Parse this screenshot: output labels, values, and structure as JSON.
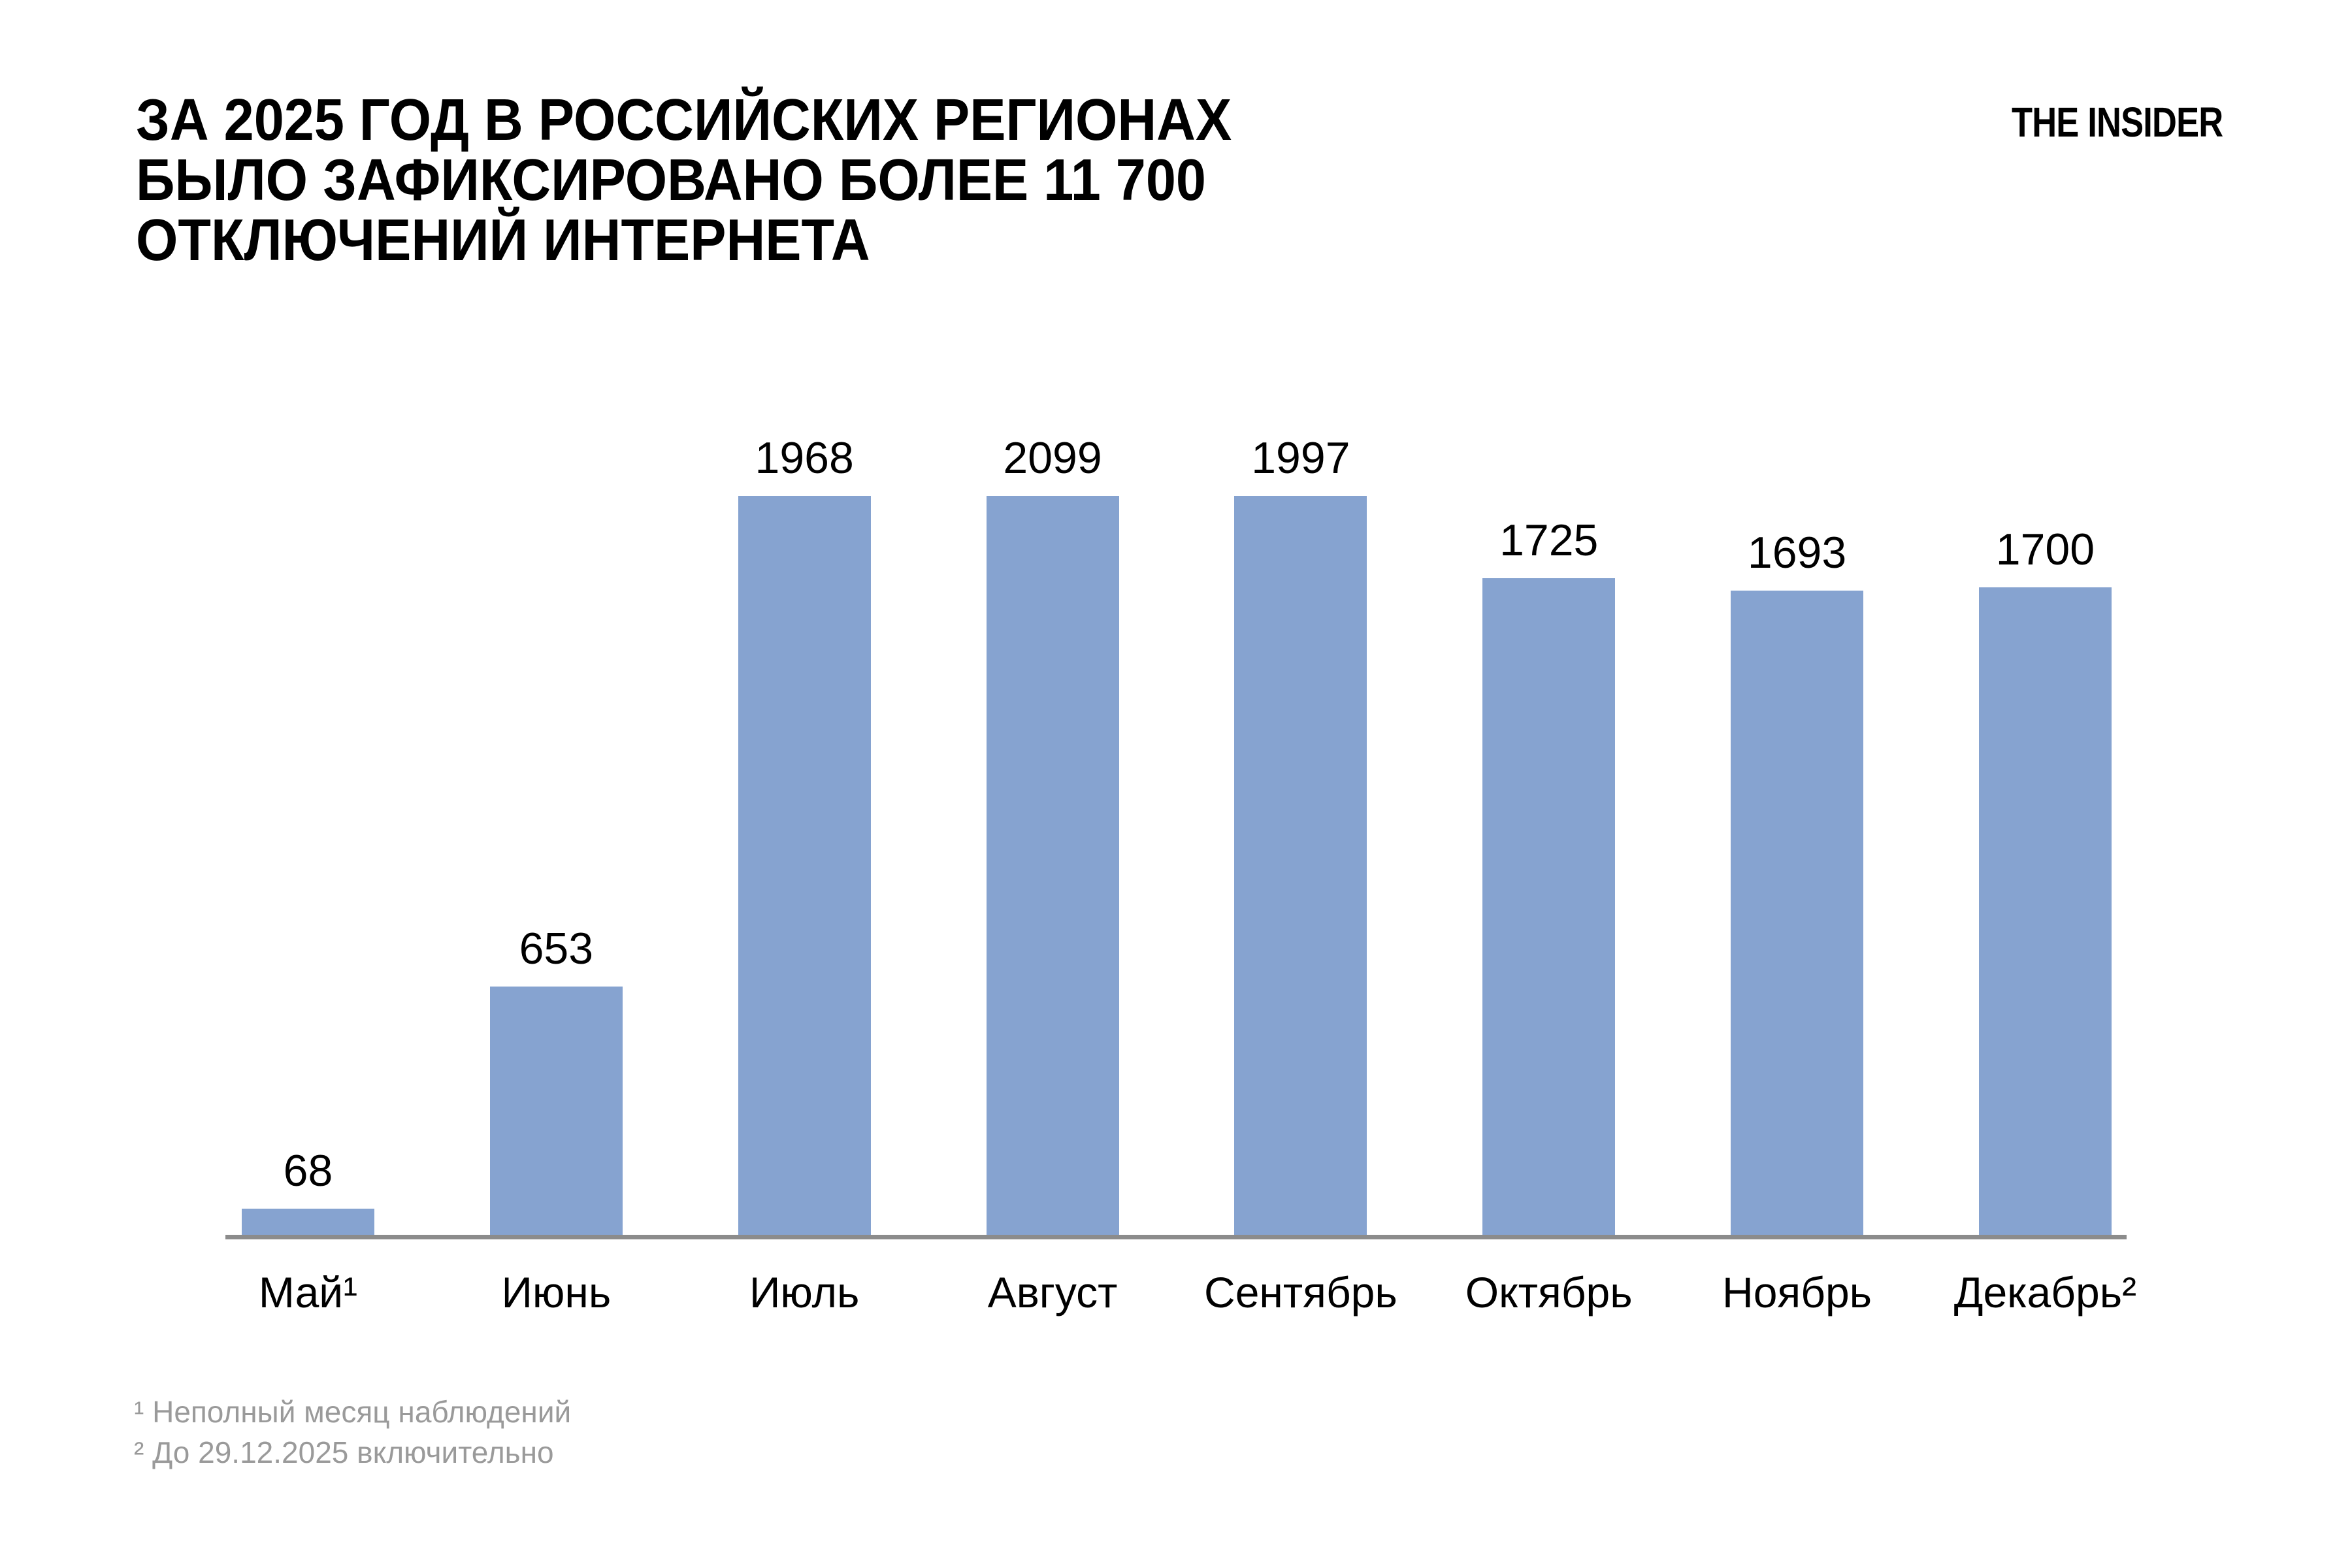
{
  "header": {
    "title_lines": [
      "ЗА 2025 ГОД В РОССИЙСКИХ РЕГИОНАХ",
      "БЫЛО ЗАФИКСИРОВАНО БОЛЕЕ 11 700",
      "ОТКЛЮЧЕНИЙ ИНТЕРНЕТА"
    ],
    "logo": "THE INSIDER"
  },
  "chart_data": {
    "type": "bar",
    "title": "ЗА 2025 ГОД В РОССИЙСКИХ РЕГИОНАХ БЫЛО ЗАФИКСИРОВАНО БОЛЕЕ 11 700 ОТКЛЮЧЕНИЙ ИНТЕРНЕТА",
    "categories": [
      "Май¹",
      "Июнь",
      "Июль",
      "Август",
      "Сентябрь",
      "Октябрь",
      "Ноябрь",
      "Декабрь²"
    ],
    "values": [
      68,
      653,
      1968,
      2099,
      1997,
      1725,
      1693,
      1700
    ],
    "value_labels_shown": true,
    "xlabel": "",
    "ylabel": "",
    "ylim": [
      0,
      2099
    ],
    "grid": false,
    "legend": null,
    "y_axis_shown": false,
    "baseline_shown": true
  },
  "colors": {
    "bar": "#86a3d0",
    "axis": "#8c8c8c",
    "footnote": "#9a9a9a",
    "text": "#000000",
    "background": "#ffffff"
  },
  "footnotes": [
    "¹ Неполный месяц наблюдений",
    "² До 29.12.2025 включительно"
  ]
}
